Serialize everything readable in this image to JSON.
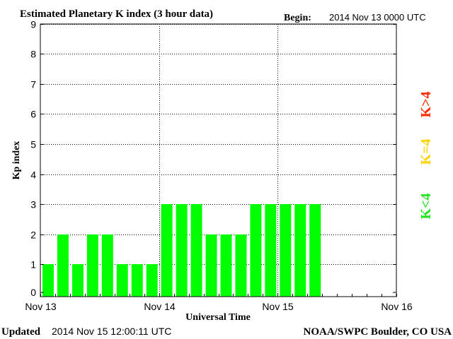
{
  "header": {
    "title": "Estimated Planetary K index (3 hour data)",
    "begin_label": "Begin:",
    "begin_value": "2014 Nov 13 0000 UTC"
  },
  "footer": {
    "updated_label": "Updated",
    "updated_value": "2014 Nov 15 12:00:11 UTC",
    "source": "NOAA/SWPC Boulder, CO USA"
  },
  "legend": {
    "high": {
      "text": "K>4",
      "color": "#ff2a00"
    },
    "equal": {
      "text": "K=4",
      "color": "#ffd200"
    },
    "low": {
      "text": "K<4",
      "color": "#22e222"
    }
  },
  "chart_data": {
    "type": "bar",
    "title": "Estimated Planetary K index (3 hour data)",
    "xlabel": "Universal Time",
    "ylabel": "Kp index",
    "ylim": [
      0,
      9
    ],
    "yticks": [
      0,
      1,
      2,
      3,
      4,
      5,
      6,
      7,
      8,
      9
    ],
    "xlim": [
      0,
      24
    ],
    "x_ticks": [
      {
        "pos": 0,
        "label": "Nov 13"
      },
      {
        "pos": 8,
        "label": "Nov 14"
      },
      {
        "pos": 16,
        "label": "Nov 15"
      },
      {
        "pos": 24,
        "label": "Nov 16"
      }
    ],
    "grid": true,
    "bar_color": "#00ff00",
    "values": [
      1,
      2,
      1,
      2,
      2,
      1,
      1,
      1,
      3,
      3,
      3,
      2,
      2,
      2,
      3,
      3,
      3,
      3,
      3
    ]
  }
}
